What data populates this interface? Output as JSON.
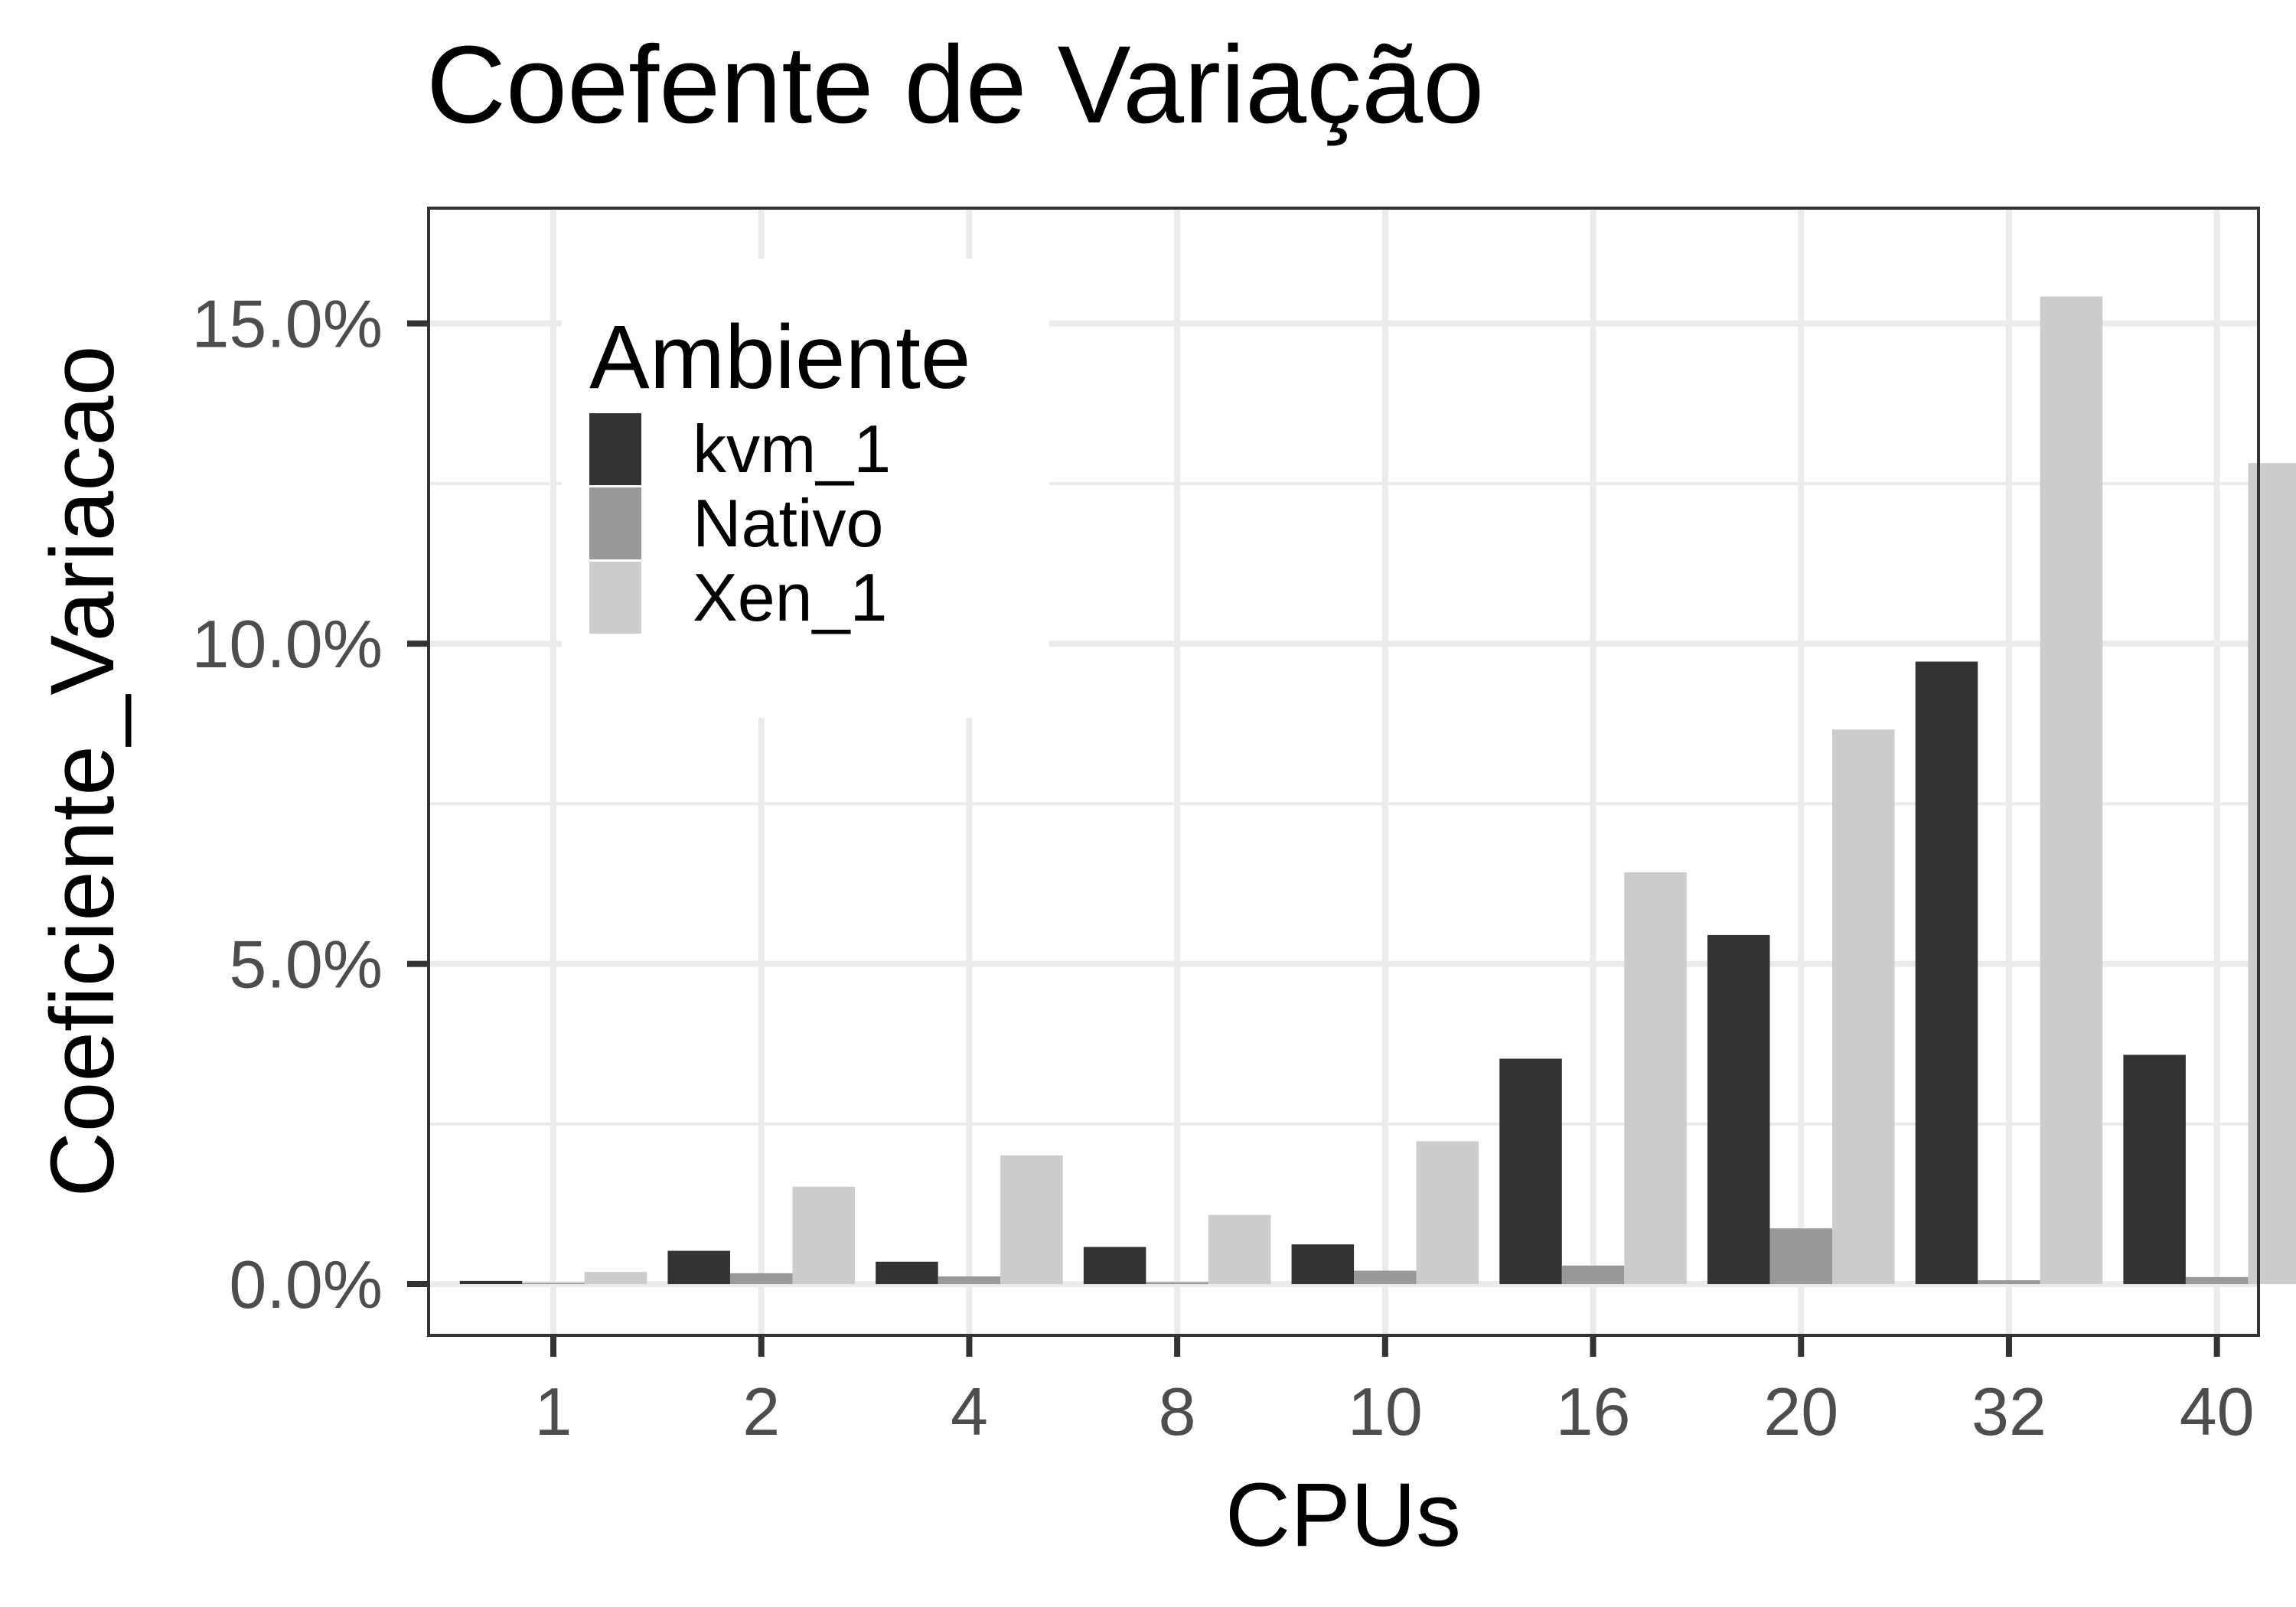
{
  "chart_data": {
    "type": "bar",
    "title": "Coefente de Variação",
    "xlabel": "CPUs",
    "ylabel": "Coeficiente_Variacao",
    "categories": [
      "1",
      "2",
      "4",
      "8",
      "10",
      "16",
      "20",
      "32",
      "40"
    ],
    "y_ticks": [
      {
        "value": 0,
        "label": "0.0%"
      },
      {
        "value": 5,
        "label": "5.0%"
      },
      {
        "value": 10,
        "label": "10.0%"
      },
      {
        "value": 15,
        "label": "15.0%"
      }
    ],
    "ylim": [
      -0.8,
      16.8
    ],
    "grid": true,
    "legend": {
      "title": "Ambiente",
      "position": "top-left"
    },
    "series": [
      {
        "name": "kvm_1",
        "color": "#333333",
        "values": [
          0.05,
          0.52,
          0.35,
          0.58,
          0.62,
          3.52,
          5.45,
          9.72,
          3.58
        ]
      },
      {
        "name": "Nativo",
        "color": "#999999",
        "values": [
          0.02,
          0.17,
          0.12,
          0.03,
          0.21,
          0.29,
          0.87,
          0.06,
          0.11
        ]
      },
      {
        "name": "Xen_1",
        "color": "#cccccc",
        "values": [
          0.19,
          1.52,
          2.01,
          1.08,
          2.23,
          6.43,
          8.66,
          15.42,
          12.82
        ]
      }
    ]
  }
}
